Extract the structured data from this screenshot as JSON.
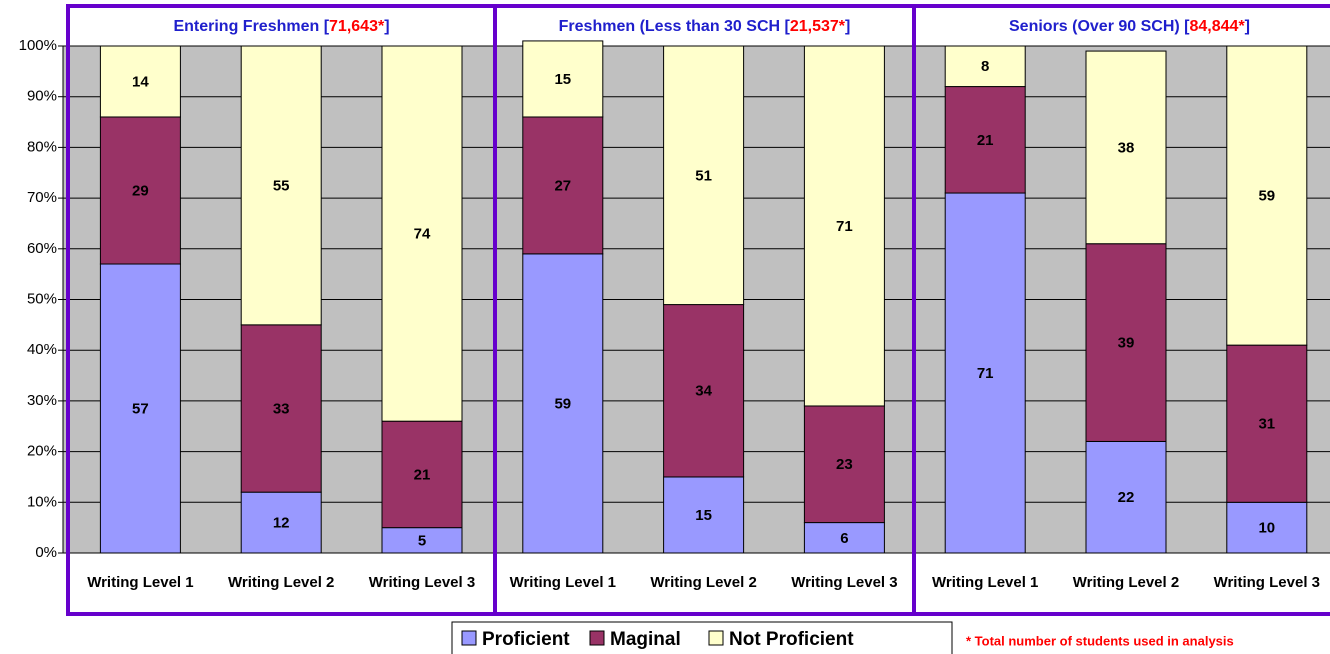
{
  "chart_data": {
    "type": "stacked_bar",
    "groups": [
      {
        "prefix": "Entering Freshmen [",
        "count": "71,643*",
        "suffix": "]"
      },
      {
        "prefix": "Freshmen (Less than 30 SCH [",
        "count": "21,537*",
        "suffix": "]"
      },
      {
        "prefix": "Seniors (Over 90 SCH) [",
        "count": "84,844*",
        "suffix": "]"
      }
    ],
    "categories": [
      "Writing Level 1",
      "Writing Level 2",
      "Writing Level 3",
      "Writing Level 1",
      "Writing Level 2",
      "Writing Level 3",
      "Writing Level 1",
      "Writing Level 2",
      "Writing Level 3"
    ],
    "series": [
      {
        "name": "Proficient",
        "color": "#9999ff",
        "values": [
          57,
          12,
          5,
          59,
          15,
          6,
          71,
          22,
          10
        ]
      },
      {
        "name": "Maginal",
        "color": "#993366",
        "values": [
          29,
          33,
          21,
          27,
          34,
          23,
          21,
          39,
          31
        ]
      },
      {
        "name": "Not Proficient",
        "color": "#ffffcc",
        "values": [
          14,
          55,
          74,
          15,
          51,
          71,
          8,
          38,
          59
        ]
      }
    ],
    "ylim": [
      0,
      100
    ],
    "yticks": [
      {
        "value": 0,
        "label": "0%"
      },
      {
        "value": 10,
        "label": "10%"
      },
      {
        "value": 20,
        "label": "20%"
      },
      {
        "value": 30,
        "label": "30%"
      },
      {
        "value": 40,
        "label": "40%"
      },
      {
        "value": 50,
        "label": "50%"
      },
      {
        "value": 60,
        "label": "60%"
      },
      {
        "value": 70,
        "label": "70%"
      },
      {
        "value": 80,
        "label": "80%"
      },
      {
        "value": 90,
        "label": "90%"
      },
      {
        "value": 100,
        "label": "100%"
      }
    ],
    "grid": true,
    "footnote": "* Total number of students used in analysis"
  }
}
